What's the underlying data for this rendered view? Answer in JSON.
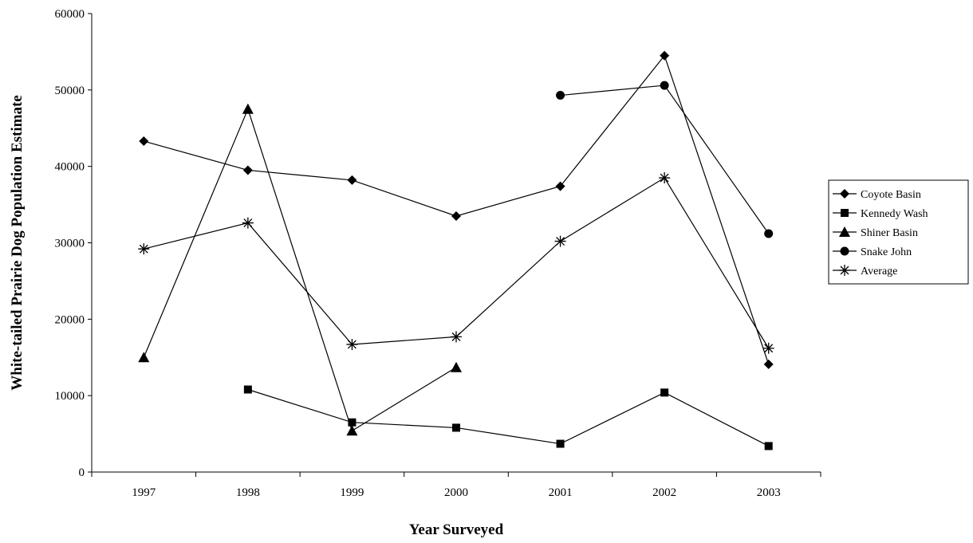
{
  "chart_data": {
    "type": "line",
    "title": "",
    "xlabel": "Year Surveyed",
    "ylabel": "White-tailed Prairie Dog Population Estimate",
    "categories": [
      "1997",
      "1998",
      "1999",
      "2000",
      "2001",
      "2002",
      "2003"
    ],
    "ylim": [
      0,
      60000
    ],
    "yticks": [
      0,
      10000,
      20000,
      30000,
      40000,
      50000,
      60000
    ],
    "grid": false,
    "legend_position": "right",
    "series": [
      {
        "name": "Coyote Basin",
        "marker": "diamond",
        "values": [
          43300,
          39500,
          38200,
          33500,
          37400,
          54500,
          14100
        ]
      },
      {
        "name": "Kennedy Wash",
        "marker": "square",
        "values": [
          null,
          10800,
          6500,
          5800,
          3700,
          10400,
          3400
        ]
      },
      {
        "name": "Shiner Basin",
        "marker": "triangle",
        "values": [
          15000,
          47500,
          5400,
          13700,
          null,
          null,
          null
        ]
      },
      {
        "name": "Snake John",
        "marker": "circle",
        "values": [
          null,
          null,
          null,
          null,
          49300,
          50600,
          31200
        ]
      },
      {
        "name": "Average",
        "marker": "asterisk",
        "values": [
          29200,
          32600,
          16700,
          17700,
          30200,
          38500,
          16200
        ]
      }
    ]
  }
}
